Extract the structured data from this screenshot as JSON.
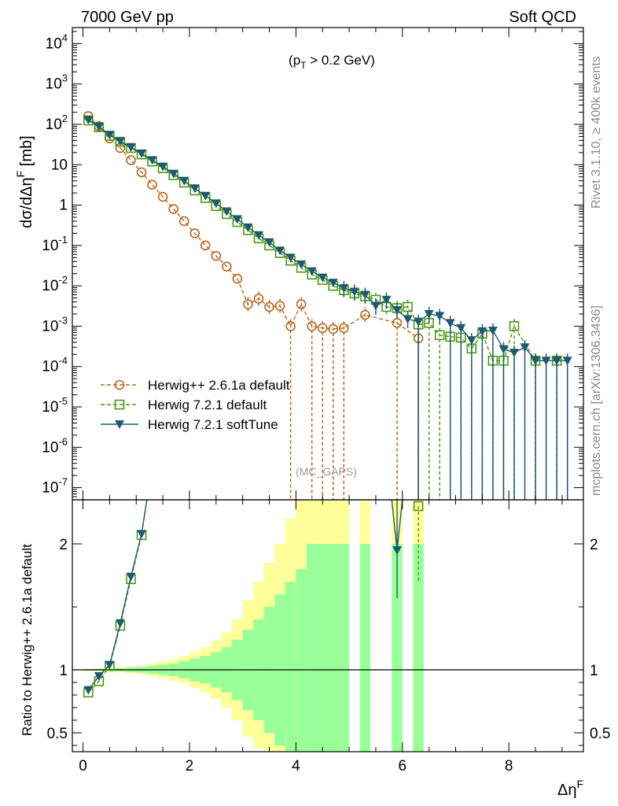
{
  "header": {
    "left": "7000 GeV pp",
    "right": "Soft QCD"
  },
  "side_labels": {
    "top": "Rivet 3.1.10, ≥ 400k events",
    "bottom": "mcplots.cern.ch [arXiv:1306.3436]"
  },
  "chart_data": [
    {
      "type": "line",
      "panel": "main",
      "ylabel": "dσ/dΔη^F [mb]",
      "annotation": "(p_T > 0.2 GeV)",
      "watermark": "(MC_GAPS)",
      "yscale": "log",
      "ylim": [
        5e-08,
        25000
      ],
      "xlim": [
        -0.2,
        9.4
      ],
      "y_tick_labels": [
        "10^-7",
        "10^-6",
        "10^-5",
        "10^-4",
        "10^-3",
        "10^-2",
        "10^-1",
        "1",
        "10",
        "10^2",
        "10^3",
        "10^4"
      ],
      "legend_position": "bottom-left",
      "series": [
        {
          "name": "Herwig++ 2.6.1a default",
          "color": "#b8661b",
          "marker": "open-circle",
          "line": "dashed",
          "x": [
            0.1,
            0.3,
            0.5,
            0.7,
            0.9,
            1.1,
            1.3,
            1.5,
            1.7,
            1.9,
            2.1,
            2.3,
            2.5,
            2.7,
            2.9,
            3.1,
            3.3,
            3.5,
            3.7,
            3.9,
            4.1,
            4.3,
            4.5,
            4.7,
            4.9,
            5.3,
            5.9,
            6.3
          ],
          "y": [
            160,
            90,
            45,
            26,
            13,
            6.5,
            3.2,
            1.6,
            0.8,
            0.4,
            0.2,
            0.1,
            0.055,
            0.03,
            0.015,
            0.0035,
            0.0048,
            0.003,
            0.0032,
            0.001,
            0.0035,
            0.001,
            0.0009,
            0.00085,
            0.0009,
            0.0019,
            0.0012,
            0.0005
          ]
        },
        {
          "name": "Herwig 7.2.1 default",
          "color": "#4a9a10",
          "marker": "open-square",
          "line": "dashed",
          "x": [
            0.1,
            0.3,
            0.5,
            0.7,
            0.9,
            1.1,
            1.3,
            1.5,
            1.7,
            1.9,
            2.1,
            2.3,
            2.5,
            2.7,
            2.9,
            3.1,
            3.3,
            3.5,
            3.7,
            3.9,
            4.1,
            4.3,
            4.5,
            4.7,
            4.9,
            5.1,
            5.3,
            5.5,
            5.7,
            5.9,
            6.1,
            6.3,
            6.5,
            6.7,
            6.9,
            7.1,
            7.3,
            7.5,
            7.7,
            7.9,
            8.1,
            8.5,
            8.9
          ],
          "y": [
            125,
            85,
            52,
            37,
            26,
            18,
            12,
            8.2,
            5.5,
            3.6,
            2.3,
            1.5,
            0.95,
            0.6,
            0.38,
            0.24,
            0.15,
            0.1,
            0.065,
            0.042,
            0.028,
            0.019,
            0.014,
            0.01,
            0.0078,
            0.0065,
            0.0055,
            0.0045,
            0.003,
            0.0028,
            0.003,
            0.0011,
            0.0012,
            0.0006,
            0.00055,
            0.00052,
            0.00028,
            0.00065,
            0.00014,
            0.00014,
            0.001,
            0.00014,
            0.00014
          ]
        },
        {
          "name": "Herwig 7.2.1 softTune",
          "color": "#1f5a6e",
          "marker": "filled-triangle-down",
          "line": "solid",
          "x": [
            0.1,
            0.3,
            0.5,
            0.7,
            0.9,
            1.1,
            1.3,
            1.5,
            1.7,
            1.9,
            2.1,
            2.3,
            2.5,
            2.7,
            2.9,
            3.1,
            3.3,
            3.5,
            3.7,
            3.9,
            4.1,
            4.3,
            4.5,
            4.7,
            4.9,
            5.1,
            5.3,
            5.5,
            5.7,
            5.9,
            6.1,
            6.3,
            6.5,
            6.7,
            6.9,
            7.1,
            7.3,
            7.5,
            7.7,
            7.9,
            8.1,
            8.3,
            8.5,
            8.7,
            8.9,
            9.1
          ],
          "y": [
            130,
            88,
            55,
            38,
            27,
            19,
            13,
            9,
            6,
            4,
            2.6,
            1.7,
            1.1,
            0.7,
            0.45,
            0.28,
            0.18,
            0.12,
            0.075,
            0.05,
            0.034,
            0.023,
            0.016,
            0.012,
            0.0088,
            0.0072,
            0.006,
            0.0032,
            0.0045,
            0.0025,
            0.0015,
            0.0013,
            0.002,
            0.0018,
            0.0012,
            0.0009,
            0.00045,
            0.00075,
            0.00078,
            0.00027,
            0.00022,
            0.0003,
            0.00014,
            0.00014,
            0.00014,
            0.00014
          ]
        }
      ]
    },
    {
      "type": "line",
      "panel": "ratio",
      "ylabel": "Ratio to Herwig++ 2.6.1a default",
      "xlabel": "Δη^F",
      "ylim": [
        0.35,
        2.35
      ],
      "xlim": [
        -0.2,
        9.4
      ],
      "y_tick_labels": [
        "0.5",
        "1",
        "2"
      ],
      "x_tick_labels": [
        "0",
        "2",
        "4",
        "6",
        "8"
      ],
      "reference_line": 1,
      "band_edges": [
        0,
        0.2,
        0.4,
        0.6,
        0.8,
        1.0,
        1.2,
        1.4,
        1.6,
        1.8,
        2.0,
        2.2,
        2.4,
        2.6,
        2.8,
        3.0,
        3.2,
        3.4,
        3.6,
        3.8,
        4.0,
        4.2,
        4.4,
        4.6,
        4.8,
        5.0
      ],
      "band_inner_hi": [
        1.005,
        1.008,
        1.01,
        1.013,
        1.017,
        1.022,
        1.03,
        1.04,
        1.05,
        1.07,
        1.09,
        1.11,
        1.14,
        1.18,
        1.24,
        1.32,
        1.4,
        1.5,
        1.6,
        1.7,
        1.8,
        2.0,
        2.0,
        2.0,
        2.0
      ],
      "band_inner_lo": [
        0.995,
        0.992,
        0.99,
        0.987,
        0.983,
        0.978,
        0.97,
        0.96,
        0.95,
        0.93,
        0.91,
        0.89,
        0.86,
        0.82,
        0.76,
        0.68,
        0.6,
        0.5,
        0.4,
        0.35,
        0.35,
        0.35,
        0.35,
        0.35,
        0.35
      ],
      "band_outer_hi": [
        1.008,
        1.012,
        1.016,
        1.02,
        1.027,
        1.035,
        1.05,
        1.065,
        1.085,
        1.11,
        1.14,
        1.18,
        1.23,
        1.3,
        1.4,
        1.55,
        1.7,
        1.85,
        2.0,
        2.2,
        2.35,
        2.35,
        2.35,
        2.35,
        2.35
      ],
      "band_outer_lo": [
        0.992,
        0.988,
        0.984,
        0.98,
        0.973,
        0.965,
        0.95,
        0.935,
        0.915,
        0.89,
        0.86,
        0.82,
        0.77,
        0.7,
        0.6,
        0.47,
        0.38,
        0.35,
        0.35,
        0.35,
        0.35,
        0.35,
        0.35,
        0.35,
        0.35
      ],
      "series": [
        {
          "name": "Herwig 7.2.1 default",
          "color": "#4a9a10",
          "marker": "open-square",
          "line": "dashed",
          "x": [
            0.1,
            0.3,
            0.5,
            0.7,
            0.9,
            1.1,
            1.2,
            6.3
          ],
          "y": [
            0.82,
            0.91,
            1.03,
            1.35,
            1.72,
            2.07,
            2.35,
            2.3
          ]
        },
        {
          "name": "Herwig 7.2.1 softTune",
          "color": "#1f5a6e",
          "marker": "filled-triangle-down",
          "line": "solid",
          "x": [
            0.1,
            0.3,
            0.5,
            0.7,
            0.9,
            1.1,
            1.2
          ],
          "y": [
            0.84,
            0.95,
            1.04,
            1.37,
            1.74,
            2.08,
            2.35
          ]
        }
      ]
    }
  ]
}
